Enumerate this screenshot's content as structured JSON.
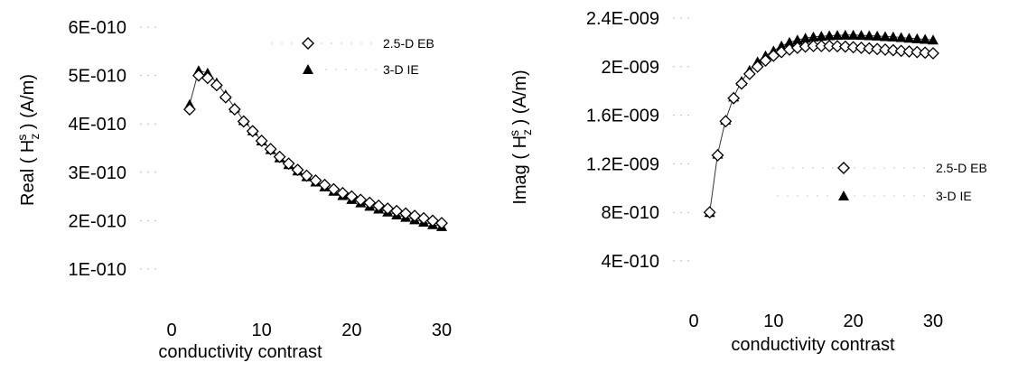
{
  "chart_data": [
    {
      "type": "scatter",
      "xlabel": "conductivity contrast",
      "ylabel": "Real ( H_z^s ) (A/m)",
      "ylabel_parts": {
        "pre": "Real ( H",
        "sup": "s",
        "sub": "z",
        "post": " ) (A/m)"
      },
      "xlim": [
        0,
        30
      ],
      "ylim": [
        1e-10,
        6e-10
      ],
      "xticks": [
        0,
        10,
        20,
        30
      ],
      "xtick_labels": [
        "0",
        "10",
        "20",
        "30"
      ],
      "yticks": [
        1e-10,
        2e-10,
        3e-10,
        4e-10,
        5e-10,
        6e-10
      ],
      "ytick_labels": [
        "1E-010",
        "2E-010",
        "3E-010",
        "4E-010",
        "5E-010",
        "6E-010"
      ],
      "grid": false,
      "legend_position": "top-right",
      "series": [
        {
          "name": "2.5-D EB",
          "marker": "diamond",
          "x": [
            2,
            3,
            4,
            5,
            6,
            7,
            8,
            9,
            10,
            11,
            12,
            13,
            14,
            15,
            16,
            17,
            18,
            19,
            20,
            21,
            22,
            23,
            24,
            25,
            26,
            27,
            28,
            29,
            30
          ],
          "y": [
            4.3e-10,
            5e-10,
            4.95e-10,
            4.8e-10,
            4.55e-10,
            4.3e-10,
            4.05e-10,
            3.85e-10,
            3.65e-10,
            3.48e-10,
            3.32e-10,
            3.18e-10,
            3.05e-10,
            2.93e-10,
            2.83e-10,
            2.74e-10,
            2.65e-10,
            2.57e-10,
            2.5e-10,
            2.43e-10,
            2.37e-10,
            2.31e-10,
            2.25e-10,
            2.2e-10,
            2.15e-10,
            2.1e-10,
            2.05e-10,
            2e-10,
            1.95e-10
          ]
        },
        {
          "name": "3-D IE",
          "marker": "triangle",
          "x": [
            2,
            3,
            4,
            5,
            6,
            7,
            8,
            9,
            10,
            11,
            12,
            13,
            14,
            15,
            16,
            17,
            18,
            19,
            20,
            21,
            22,
            23,
            24,
            25,
            26,
            27,
            28,
            29,
            30
          ],
          "y": [
            4.4e-10,
            5.1e-10,
            5.05e-10,
            4.85e-10,
            4.6e-10,
            4.33e-10,
            4.07e-10,
            3.86e-10,
            3.65e-10,
            3.47e-10,
            3.3e-10,
            3.16e-10,
            3.03e-10,
            2.91e-10,
            2.8e-10,
            2.7e-10,
            2.61e-10,
            2.52e-10,
            2.44e-10,
            2.37e-10,
            2.3e-10,
            2.24e-10,
            2.18e-10,
            2.12e-10,
            2.07e-10,
            2.02e-10,
            1.97e-10,
            1.92e-10,
            1.88e-10
          ]
        }
      ]
    },
    {
      "type": "scatter",
      "xlabel": "conductivity contrast",
      "ylabel": "Imag ( H_z^s ) (A/m)",
      "ylabel_parts": {
        "pre": "Imag ( H",
        "sup": "s",
        "sub": "z",
        "post": " ) (A/m)"
      },
      "xlim": [
        0,
        30
      ],
      "ylim": [
        4e-10,
        2.4e-09
      ],
      "xticks": [
        0,
        10,
        20,
        30
      ],
      "xtick_labels": [
        "0",
        "10",
        "20",
        "30"
      ],
      "yticks": [
        4e-10,
        8e-10,
        1.2e-09,
        1.6e-09,
        2e-09,
        2.4e-09
      ],
      "ytick_labels": [
        "4E-010",
        "8E-010",
        "1.2E-009",
        "1.6E-009",
        "2E-009",
        "2.4E-009"
      ],
      "grid": false,
      "legend_position": "center-right",
      "series": [
        {
          "name": "2.5-D EB",
          "marker": "diamond",
          "x": [
            2,
            3,
            4,
            5,
            6,
            7,
            8,
            9,
            10,
            11,
            12,
            13,
            14,
            15,
            16,
            17,
            18,
            19,
            20,
            21,
            22,
            23,
            24,
            25,
            26,
            27,
            28,
            29,
            30
          ],
          "y": [
            8e-10,
            1.27e-09,
            1.55e-09,
            1.74e-09,
            1.86e-09,
            1.94e-09,
            2e-09,
            2.05e-09,
            2.09e-09,
            2.12e-09,
            2.14e-09,
            2.155e-09,
            2.165e-09,
            2.17e-09,
            2.17e-09,
            2.17e-09,
            2.168e-09,
            2.165e-09,
            2.16e-09,
            2.155e-09,
            2.15e-09,
            2.145e-09,
            2.14e-09,
            2.135e-09,
            2.13e-09,
            2.125e-09,
            2.12e-09,
            2.115e-09,
            2.11e-09
          ]
        },
        {
          "name": "3-D IE",
          "marker": "triangle",
          "x": [
            2,
            3,
            4,
            5,
            6,
            7,
            8,
            9,
            10,
            11,
            12,
            13,
            14,
            15,
            16,
            17,
            18,
            19,
            20,
            21,
            22,
            23,
            24,
            25,
            26,
            27,
            28,
            29,
            30
          ],
          "y": [
            8e-10,
            1.28e-09,
            1.56e-09,
            1.75e-09,
            1.88e-09,
            1.97e-09,
            2.04e-09,
            2.09e-09,
            2.13e-09,
            2.17e-09,
            2.2e-09,
            2.22e-09,
            2.235e-09,
            2.245e-09,
            2.25e-09,
            2.255e-09,
            2.258e-09,
            2.26e-09,
            2.26e-09,
            2.258e-09,
            2.255e-09,
            2.252e-09,
            2.248e-09,
            2.245e-09,
            2.24e-09,
            2.235e-09,
            2.23e-09,
            2.225e-09,
            2.22e-09
          ]
        }
      ]
    }
  ]
}
